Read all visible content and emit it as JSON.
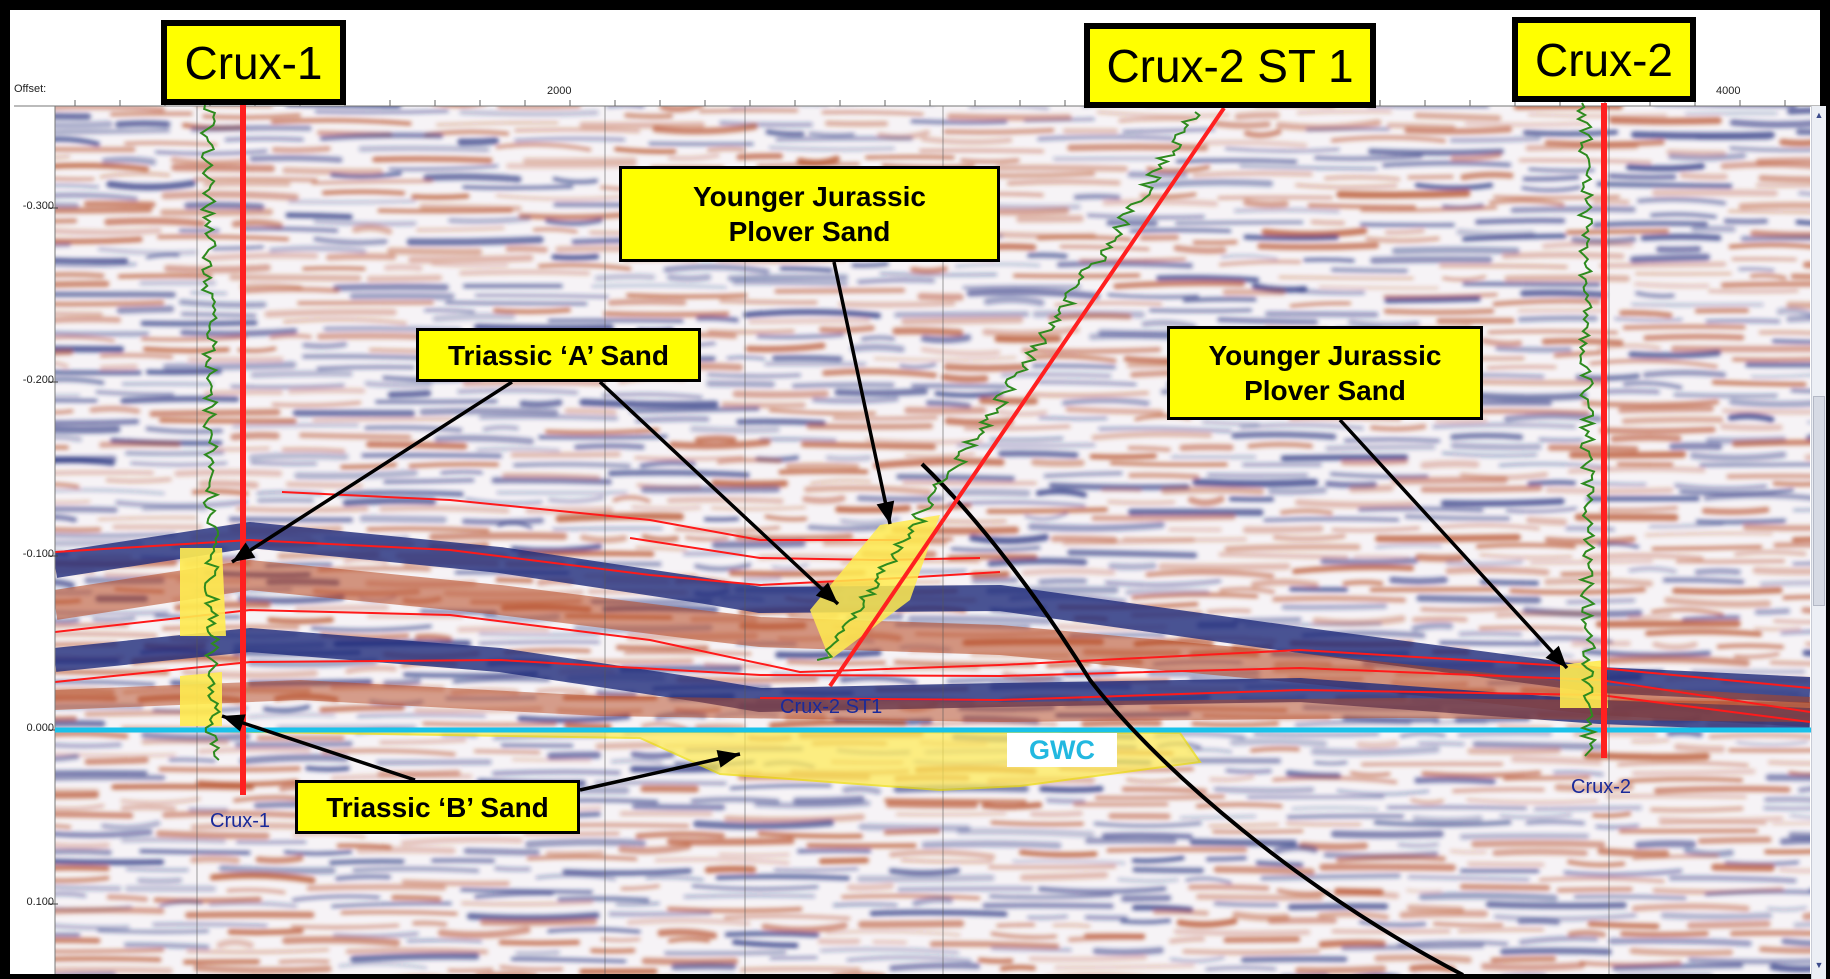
{
  "colors": {
    "border": "#000000",
    "callout_fill": "#ffff00",
    "well_line": "#ff2020",
    "gamma_log": "#2e8b1e",
    "horizon": "#ff1a1a",
    "gwc_line": "#19c2ea",
    "sand_fill": "#ffeb50",
    "fault": "#000000",
    "seismic_red": "#b4461e",
    "seismic_blue": "#1e2a7a"
  },
  "header": {
    "offset_label": "Offset:"
  },
  "x_axis": {
    "tick_labels": [
      "2000",
      "4000"
    ]
  },
  "y_axis": {
    "tick_labels": [
      "-0.300",
      "-0.200",
      "-0.100",
      "0.000",
      "0.100"
    ]
  },
  "wells": [
    {
      "name": "Crux-1",
      "title": "Crux-1",
      "label": "Crux-1"
    },
    {
      "name": "Crux-2 ST 1",
      "title": "Crux-2 ST 1",
      "label": "Crux-2 ST1"
    },
    {
      "name": "Crux-2",
      "title": "Crux-2",
      "label": "Crux-2"
    }
  ],
  "callouts": {
    "jurassic_center": "Younger Jurassic\nPlover Sand",
    "triassic_a": "Triassic ‘A’ Sand",
    "jurassic_right": "Younger Jurassic\nPlover Sand",
    "triassic_b": "Triassic ‘B’ Sand"
  },
  "gwc_label": "GWC",
  "scrollbar": {
    "up_arrow": "▲",
    "down_arrow": "▼"
  }
}
